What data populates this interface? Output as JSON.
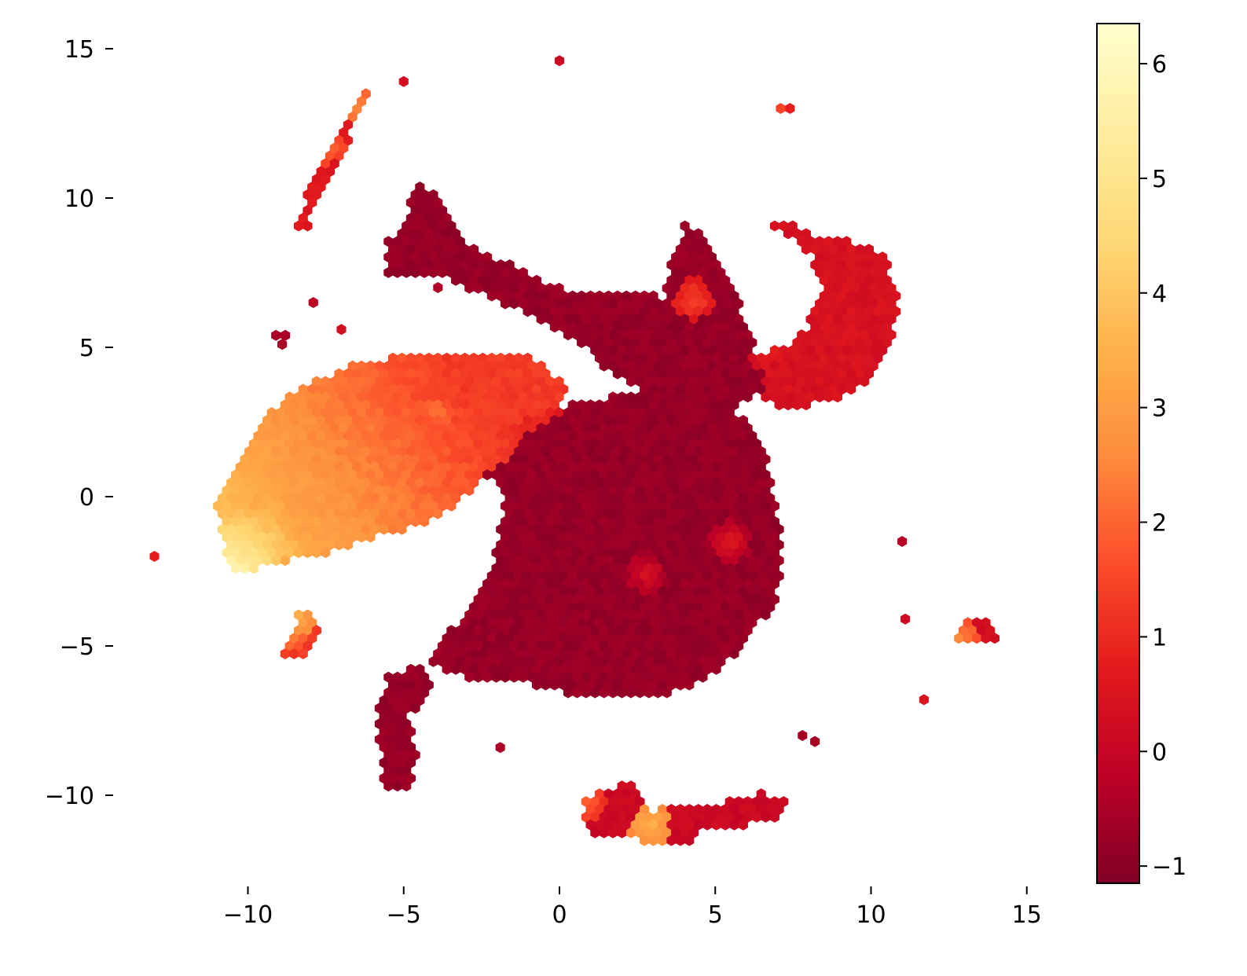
{
  "chart_data": {
    "type": "heatmap",
    "subtype": "hexbin",
    "title": "",
    "xlabel": "",
    "ylabel": "",
    "xlim": [
      -14.5,
      16.5
    ],
    "ylim": [
      -13,
      16
    ],
    "x_ticks": [
      {
        "value": -10,
        "label": "−10"
      },
      {
        "value": -5,
        "label": "−5"
      },
      {
        "value": 0,
        "label": "0"
      },
      {
        "value": 5,
        "label": "5"
      },
      {
        "value": 10,
        "label": "10"
      },
      {
        "value": 15,
        "label": "15"
      }
    ],
    "y_ticks": [
      {
        "value": 15,
        "label": "15"
      },
      {
        "value": 10,
        "label": "10"
      },
      {
        "value": 5,
        "label": "5"
      },
      {
        "value": 0,
        "label": "0"
      },
      {
        "value": -5,
        "label": "−5"
      },
      {
        "value": -10,
        "label": "−10"
      }
    ],
    "frame": "none",
    "grid": false,
    "colormap": "YlOrRd_r",
    "colormap_stops": [
      "#800026",
      "#bd0026",
      "#e31a1c",
      "#fc4e2a",
      "#fd8d3c",
      "#feb24c",
      "#fed976",
      "#ffeda0",
      "#ffffcc"
    ],
    "colorbar": {
      "range": [
        -1.15,
        6.35
      ],
      "ticks": [
        {
          "value": -1,
          "label": "−1"
        },
        {
          "value": 0,
          "label": "0"
        },
        {
          "value": 1,
          "label": "1"
        },
        {
          "value": 2,
          "label": "2"
        },
        {
          "value": 3,
          "label": "3"
        },
        {
          "value": 4,
          "label": "4"
        },
        {
          "value": 5,
          "label": "5"
        },
        {
          "value": 6,
          "label": "6"
        }
      ]
    },
    "blobs": [
      {
        "name": "central-body",
        "points": [
          [
            -3.5,
            0.8
          ],
          [
            -1,
            2.7
          ],
          [
            1.2,
            3.3
          ],
          [
            3.5,
            3.6
          ],
          [
            5.5,
            3.2
          ],
          [
            6.6,
            1.5
          ],
          [
            7.2,
            -1.5
          ],
          [
            7,
            -3.5
          ],
          [
            6,
            -4.8
          ],
          [
            5,
            -6
          ],
          [
            3,
            -6.8
          ],
          [
            1,
            -6.8
          ],
          [
            -1,
            -6.3
          ],
          [
            -3,
            -6.1
          ],
          [
            -4.2,
            -5.6
          ],
          [
            -3.5,
            -4.5
          ],
          [
            -2.6,
            -3.2
          ],
          [
            -2,
            -1.8
          ],
          [
            -1.8,
            -0.2
          ],
          [
            -2.1,
            0.5
          ]
        ],
        "value": -0.8
      },
      {
        "name": "upper-arm",
        "points": [
          [
            -5,
            9
          ],
          [
            -4.6,
            10.5
          ],
          [
            -3.8,
            10
          ],
          [
            -3,
            8.6
          ],
          [
            -2,
            8
          ],
          [
            0,
            7
          ],
          [
            2,
            6.8
          ],
          [
            3.3,
            6.7
          ],
          [
            3.6,
            7.8
          ],
          [
            4,
            9.2
          ],
          [
            4.7,
            8.7
          ],
          [
            5.6,
            7
          ],
          [
            6.3,
            5
          ],
          [
            6.6,
            3.5
          ],
          [
            5.5,
            3
          ],
          [
            3.8,
            3.2
          ],
          [
            2.6,
            3.6
          ],
          [
            1.4,
            4.3
          ],
          [
            0.5,
            5.3
          ],
          [
            -1.2,
            6.2
          ],
          [
            -3,
            7
          ],
          [
            -4.2,
            7.5
          ],
          [
            -5.5,
            7.4
          ],
          [
            -5.6,
            8.5
          ]
        ],
        "value": -0.8
      },
      {
        "name": "left-arm",
        "points": [
          [
            -10.8,
            -1.2
          ],
          [
            -10.5,
            -2.5
          ],
          [
            -9,
            -2.2
          ],
          [
            -7.5,
            -1.9
          ],
          [
            -6,
            -1.4
          ],
          [
            -4,
            -0.8
          ],
          [
            -3,
            0
          ],
          [
            -2.3,
            0.8
          ],
          [
            -1.3,
            1.4
          ],
          [
            -1.5,
            1.9
          ],
          [
            0,
            2.8
          ],
          [
            0.3,
            3.5
          ],
          [
            -0.6,
            4.6
          ],
          [
            -2,
            4.8
          ],
          [
            -4,
            4.7
          ],
          [
            -6.2,
            4.6
          ],
          [
            -7.5,
            4
          ],
          [
            -8.5,
            3.6
          ],
          [
            -9.5,
            2.7
          ],
          [
            -10.5,
            1
          ],
          [
            -11,
            -0.4
          ]
        ],
        "value": 1.3
      },
      {
        "name": "left-arm-gradient",
        "points": [
          [
            -10.9,
            -0.8
          ],
          [
            -10.6,
            -2.6
          ],
          [
            -9,
            -2.2
          ],
          [
            -7.6,
            -1.7
          ],
          [
            -8,
            -0.2
          ],
          [
            -9.2,
            1.2
          ],
          [
            -10.1,
            1.2
          ]
        ],
        "value": 3.8
      },
      {
        "name": "right-crescent",
        "points": [
          [
            6.3,
            4.8
          ],
          [
            6.4,
            3.3
          ],
          [
            7,
            3
          ],
          [
            8.5,
            3.1
          ],
          [
            9.8,
            3.8
          ],
          [
            10.6,
            5
          ],
          [
            10.9,
            6.5
          ],
          [
            10.5,
            8
          ],
          [
            9.4,
            8.6
          ],
          [
            8.2,
            8.7
          ],
          [
            7.5,
            9.2
          ],
          [
            6.6,
            9.1
          ],
          [
            7.4,
            8.7
          ],
          [
            8.1,
            8
          ],
          [
            8.4,
            6.8
          ],
          [
            7.9,
            5.6
          ],
          [
            7.2,
            5
          ]
        ],
        "value": 0.4
      },
      {
        "name": "hook-tail",
        "points": [
          [
            -5.5,
            -6
          ],
          [
            -4.5,
            -5.6
          ],
          [
            -4,
            -6.5
          ],
          [
            -4.8,
            -7.3
          ],
          [
            -4.6,
            -8.7
          ],
          [
            -4.8,
            -9.8
          ],
          [
            -5.6,
            -9.8
          ],
          [
            -5.8,
            -8
          ],
          [
            -5.8,
            -6.8
          ]
        ],
        "value": -0.8
      },
      {
        "name": "bottom-cluster",
        "points": [
          [
            0.8,
            -10.1
          ],
          [
            1.7,
            -9.8
          ],
          [
            2.4,
            -9.4
          ],
          [
            3,
            -10.5
          ],
          [
            5,
            -10.3
          ],
          [
            6.5,
            -9.9
          ],
          [
            7.5,
            -10.1
          ],
          [
            7.2,
            -10.7
          ],
          [
            6,
            -11
          ],
          [
            4.5,
            -11.2
          ],
          [
            4,
            -11.7
          ],
          [
            3.2,
            -11.7
          ],
          [
            2.5,
            -11.5
          ],
          [
            1,
            -11.4
          ],
          [
            0.8,
            -10.8
          ]
        ],
        "value": 0.1
      },
      {
        "name": "right-triangle",
        "points": [
          [
            12.6,
            -4.9
          ],
          [
            13.4,
            -3.8
          ],
          [
            14,
            -4.6
          ],
          [
            14,
            -5
          ]
        ],
        "value": 0.3
      },
      {
        "name": "left-triangle",
        "points": [
          [
            -8.9,
            -5.4
          ],
          [
            -8.3,
            -3.7
          ],
          [
            -7.6,
            -4.5
          ],
          [
            -8.1,
            -5.3
          ]
        ],
        "value": 1.3
      },
      {
        "name": "streak",
        "points": [
          [
            -8.6,
            9.1
          ],
          [
            -6.3,
            13.7
          ],
          [
            -6.1,
            13.4
          ],
          [
            -8.2,
            8.8
          ]
        ],
        "value": 0.6
      }
    ],
    "hotspots": [
      {
        "x": -7.5,
        "y": 11.8,
        "value": 2.2
      },
      {
        "x": -6.1,
        "y": 12.5,
        "value": 2.3
      },
      {
        "x": -6.5,
        "y": 13.1,
        "value": 2.6
      },
      {
        "x": -10.2,
        "y": -2.6,
        "value": 5.7
      },
      {
        "x": -10.6,
        "y": -2.2,
        "value": 5.2
      },
      {
        "x": -8.5,
        "y": -4,
        "value": 3.5
      },
      {
        "x": -8.7,
        "y": -4.5,
        "value": 2.6
      },
      {
        "x": -4,
        "y": 2.8,
        "value": 2.3
      },
      {
        "x": 4.3,
        "y": 6.6,
        "value": 1.5
      },
      {
        "x": 2.9,
        "y": -11,
        "value": 3.5
      },
      {
        "x": 0.8,
        "y": -10.3,
        "value": 2
      },
      {
        "x": 12.8,
        "y": -4.8,
        "value": 2.6
      },
      {
        "x": 8.2,
        "y": 6.8,
        "value": 0.9
      },
      {
        "x": 6.8,
        "y": 4.8,
        "value": 1
      },
      {
        "x": 5.5,
        "y": -1.5,
        "value": 0.6
      },
      {
        "x": 2.8,
        "y": -2.6,
        "value": 0.4
      }
    ],
    "isolated_points": [
      {
        "x": 0,
        "y": 14.6,
        "value": 0.2
      },
      {
        "x": -5,
        "y": 13.9,
        "value": 0.3
      },
      {
        "x": 7.1,
        "y": 13,
        "value": 1.5
      },
      {
        "x": 7.4,
        "y": 13,
        "value": 0.8
      },
      {
        "x": -7.9,
        "y": 6.5,
        "value": -0.2
      },
      {
        "x": -7,
        "y": 5.6,
        "value": 0.3
      },
      {
        "x": -9.1,
        "y": 5.4,
        "value": -0.5
      },
      {
        "x": -8.8,
        "y": 5.4,
        "value": -0.5
      },
      {
        "x": -8.9,
        "y": 5.1,
        "value": -0.5
      },
      {
        "x": -13,
        "y": -2,
        "value": 0.8
      },
      {
        "x": 11,
        "y": -1.5,
        "value": -0.3
      },
      {
        "x": 11.1,
        "y": -4.1,
        "value": 0.2
      },
      {
        "x": 11.7,
        "y": -6.8,
        "value": 0.5
      },
      {
        "x": 7.8,
        "y": -8,
        "value": -0.5
      },
      {
        "x": 8.2,
        "y": -8.2,
        "value": -0.5
      },
      {
        "x": -1.9,
        "y": -8.4,
        "value": -0.5
      },
      {
        "x": -3.9,
        "y": 7,
        "value": -0.4
      }
    ]
  }
}
